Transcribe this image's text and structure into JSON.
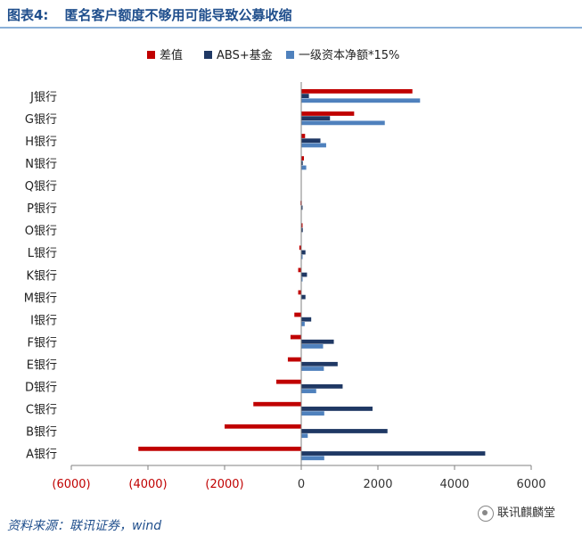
{
  "header": {
    "figure_label": "图表4:",
    "title": "匿名客户额度不够用可能导致公募收缩"
  },
  "source": "资料来源：联讯证券，wind",
  "watermark": "联讯麒麟堂",
  "colors": {
    "diff": "#c00000",
    "abs_fund": "#1f3864",
    "capital15": "#4f81bd",
    "negative_tick": "#c00000",
    "positive_tick": "#333333",
    "axis": "#808080"
  },
  "chart_data": {
    "type": "bar",
    "orientation": "horizontal",
    "categories": [
      "J银行",
      "G银行",
      "H银行",
      "N银行",
      "Q银行",
      "P银行",
      "O银行",
      "L银行",
      "K银行",
      "M银行",
      "I银行",
      "F银行",
      "E银行",
      "D银行",
      "C银行",
      "B银行",
      "A银行"
    ],
    "series": [
      {
        "name": "差值",
        "color_key": "diff",
        "values": [
          2900,
          1380,
          100,
          70,
          0,
          -20,
          10,
          -50,
          -80,
          -80,
          -180,
          -280,
          -350,
          -650,
          -1250,
          -2000,
          -4250
        ]
      },
      {
        "name": "ABS+基金",
        "color_key": "abs_fund",
        "values": [
          200,
          750,
          500,
          40,
          0,
          20,
          40,
          110,
          150,
          110,
          260,
          850,
          950,
          1080,
          1860,
          2250,
          4800
        ]
      },
      {
        "name": "一级资本净额*15%",
        "color_key": "capital15",
        "values": [
          3100,
          2180,
          650,
          130,
          0,
          0,
          0,
          20,
          30,
          0,
          90,
          570,
          590,
          390,
          600,
          170,
          600
        ]
      }
    ],
    "xlim": [
      -6000,
      6000
    ],
    "x_ticks": [
      -6000,
      -4000,
      -2000,
      0,
      2000,
      4000,
      6000
    ],
    "x_tick_labels": [
      "(6000)",
      "(4000)",
      "(2000)",
      "0",
      "2000",
      "4000",
      "6000"
    ],
    "legend_position": "top",
    "grid": false
  }
}
